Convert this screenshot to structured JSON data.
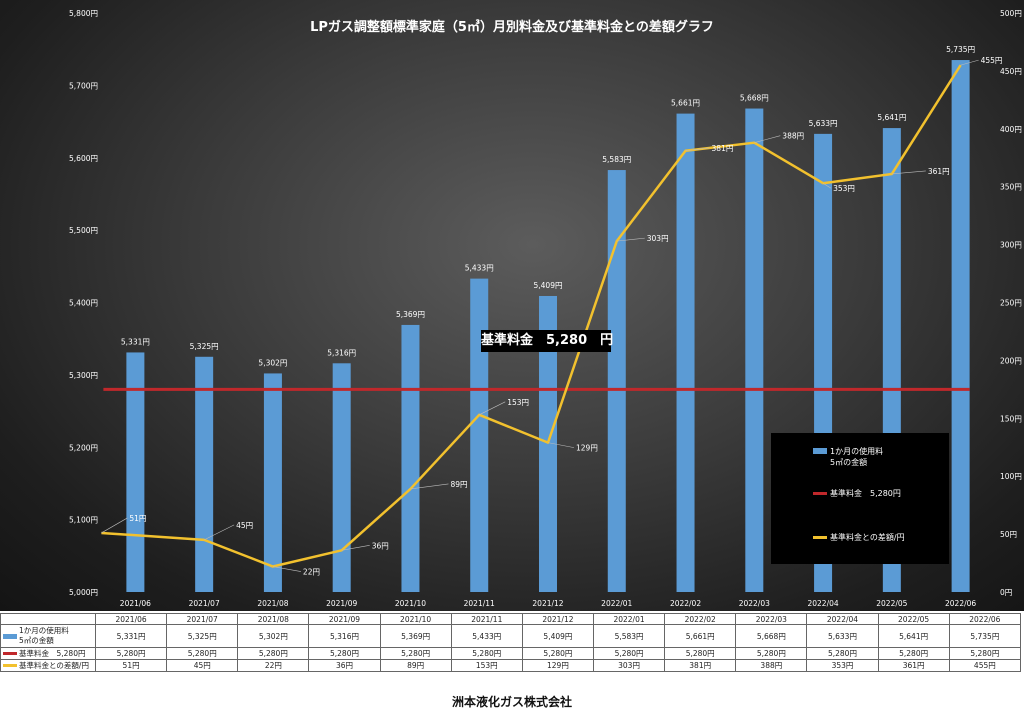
{
  "chart_data": {
    "type": "bar",
    "title": "LPガス調整額標準家庭（5㎥）月別料金及び基準料金との差額グラフ",
    "categories": [
      "2021/06",
      "2021/07",
      "2021/08",
      "2021/09",
      "2021/10",
      "2021/11",
      "2021/12",
      "2022/01",
      "2022/02",
      "2022/03",
      "2022/04",
      "2022/05",
      "2022/06"
    ],
    "y_left": {
      "min": 5000,
      "max": 5800,
      "step": 100,
      "tick_labels": [
        "5,000円",
        "5,100円",
        "5,200円",
        "5,300円",
        "5,400円",
        "5,500円",
        "5,600円",
        "5,700円",
        "5,800円"
      ]
    },
    "y_right": {
      "min": 0,
      "max": 500,
      "step": 50,
      "tick_labels": [
        "0円",
        "50円",
        "100円",
        "150円",
        "200円",
        "250円",
        "300円",
        "350円",
        "400円",
        "450円",
        "500円"
      ]
    },
    "series": [
      {
        "name": "1か月の使用料\n5㎥の金額",
        "type": "bar",
        "axis": "left",
        "color": "#5b9bd5",
        "values": [
          5331,
          5325,
          5302,
          5316,
          5369,
          5433,
          5409,
          5583,
          5661,
          5668,
          5633,
          5641,
          5735
        ],
        "labels": [
          "5,331円",
          "5,325円",
          "5,302円",
          "5,316円",
          "5,369円",
          "5,433円",
          "5,409円",
          "5,583円",
          "5,661円",
          "5,668円",
          "5,633円",
          "5,641円",
          "5,735円"
        ]
      },
      {
        "name": "基準料金　5,280円",
        "type": "line",
        "axis": "left",
        "color": "#c0282b",
        "values": [
          5280,
          5280,
          5280,
          5280,
          5280,
          5280,
          5280,
          5280,
          5280,
          5280,
          5280,
          5280,
          5280
        ],
        "labels": [
          "5,280円",
          "5,280円",
          "5,280円",
          "5,280円",
          "5,280円",
          "5,280円",
          "5,280円",
          "5,280円",
          "5,280円",
          "5,280円",
          "5,280円",
          "5,280円",
          "5,280円"
        ]
      },
      {
        "name": "基準料金との差額/円",
        "type": "line",
        "axis": "right",
        "color": "#f2c12e",
        "values": [
          51,
          45,
          22,
          36,
          89,
          153,
          129,
          303,
          381,
          388,
          353,
          361,
          455
        ],
        "labels": [
          "51円",
          "45円",
          "22円",
          "36円",
          "89円",
          "153円",
          "129円",
          "303円",
          "381円",
          "388円",
          "353円",
          "361円",
          "455円"
        ]
      }
    ],
    "annotation": "基準料金　5,280　円",
    "legend_position": "bottom-right",
    "grid": false
  },
  "table": {
    "legend_table_names": [
      "1か月の使用料\n5㎥の金額",
      "基準料金　5,280円",
      "基準料金との差額/円"
    ]
  },
  "footer": {
    "company": "洲本液化ガス株式会社"
  }
}
